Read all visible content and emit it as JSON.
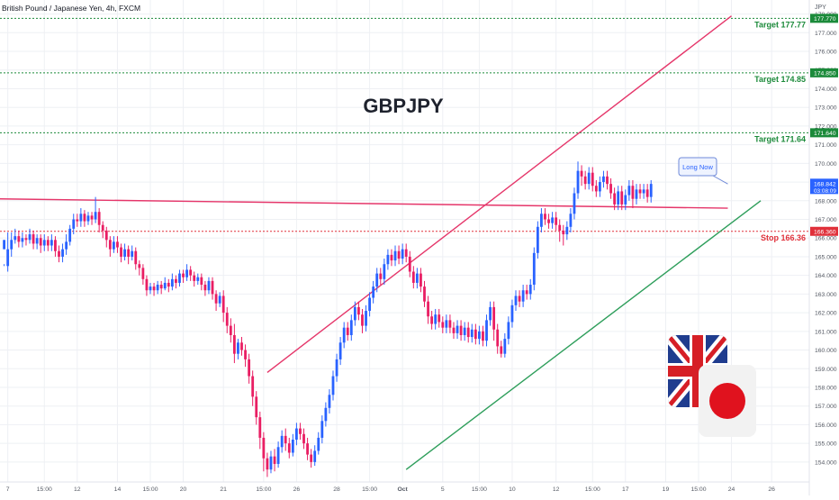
{
  "header": {
    "symbol_title": "British Pound / Japanese Yen, 4h, FXCM",
    "currency_label": "JPY",
    "main_label": "GBPJPY"
  },
  "colors": {
    "bull": "#2962ff",
    "bear": "#e91e63",
    "target_line": "#1b8a3a",
    "stop_line": "#e0303a",
    "trend_red": "#e5366a",
    "trend_green": "#2e9e5b",
    "grid": "#eef0f4",
    "axis_text": "#555a64"
  },
  "annotation": {
    "text": "Long Now"
  },
  "flags": {
    "left": "union-jack-flag-icon",
    "right": "japan-flag-icon"
  },
  "chart_data": {
    "type": "candlestick",
    "title": "British Pound / Japanese Yen, 4h, FXCM",
    "label": "GBPJPY",
    "ylabel": "JPY",
    "ylim": [
      153.4,
      178.4
    ],
    "y_ticks": [
      154.0,
      155.0,
      156.0,
      157.0,
      158.0,
      159.0,
      160.0,
      161.0,
      162.0,
      163.0,
      164.0,
      165.0,
      166.0,
      167.0,
      168.0,
      169.0,
      170.0,
      171.0,
      172.0,
      173.0,
      174.0,
      175.0,
      176.0,
      177.0,
      178.0
    ],
    "x_ticks": [
      {
        "bar": 1,
        "label": "7"
      },
      {
        "bar": 11,
        "label": "15:00"
      },
      {
        "bar": 20,
        "label": "12"
      },
      {
        "bar": 31,
        "label": "14"
      },
      {
        "bar": 40,
        "label": "15:00"
      },
      {
        "bar": 49,
        "label": "20"
      },
      {
        "bar": 60,
        "label": "21"
      },
      {
        "bar": 71,
        "label": "15:00"
      },
      {
        "bar": 80,
        "label": "26"
      },
      {
        "bar": 91,
        "label": "28"
      },
      {
        "bar": 100,
        "label": "15:00"
      },
      {
        "bar": 109,
        "label": "Oct"
      },
      {
        "bar": 120,
        "label": "5"
      },
      {
        "bar": 130,
        "label": "15:00"
      },
      {
        "bar": 139,
        "label": "10"
      },
      {
        "bar": 151,
        "label": "12"
      },
      {
        "bar": 161,
        "label": "15:00"
      },
      {
        "bar": 170,
        "label": "17"
      },
      {
        "bar": 181,
        "label": "19"
      },
      {
        "bar": 190,
        "label": "15:00"
      },
      {
        "bar": 199,
        "label": "24"
      },
      {
        "bar": 210,
        "label": "26"
      }
    ],
    "levels": [
      {
        "name": "Target 177.77",
        "price": 177.77,
        "tag": "177.770",
        "kind": "target"
      },
      {
        "name": "Target 174.85",
        "price": 174.85,
        "tag": "174.850",
        "kind": "target"
      },
      {
        "name": "Target 171.64",
        "price": 171.64,
        "tag": "171.640",
        "kind": "target"
      },
      {
        "name": "Stop 166.36",
        "price": 166.36,
        "tag": "166.360",
        "kind": "stop"
      }
    ],
    "last_price": {
      "value": 168.842,
      "label": "168.842",
      "countdown": "03:08:09"
    },
    "trendlines": [
      {
        "color": "trend_red",
        "from": {
          "bar": -2,
          "price": 168.1
        },
        "to": {
          "bar": 198,
          "price": 167.6
        }
      },
      {
        "color": "trend_red",
        "from": {
          "bar": 72,
          "price": 158.8
        },
        "to": {
          "bar": 199,
          "price": 177.9
        }
      },
      {
        "color": "trend_green",
        "from": {
          "bar": 110,
          "price": 153.6
        },
        "to": {
          "bar": 207,
          "price": 168.0
        }
      }
    ],
    "annotation_anchor": {
      "bar": 198,
      "price": 168.9
    },
    "candles": [
      [
        165.4,
        165.9,
        164.6,
        164.5
      ],
      [
        164.5,
        165.4,
        166.3,
        164.2
      ],
      [
        165.4,
        165.9,
        166.3,
        165.0
      ],
      [
        165.9,
        166.1,
        166.5,
        165.7
      ],
      [
        166.1,
        165.8,
        166.4,
        165.5
      ],
      [
        165.8,
        166.0,
        166.3,
        165.5
      ],
      [
        166.0,
        165.9,
        166.2,
        165.6
      ],
      [
        165.9,
        166.2,
        166.5,
        165.7
      ],
      [
        166.2,
        165.7,
        166.4,
        165.4
      ],
      [
        165.7,
        166.0,
        166.2,
        165.4
      ],
      [
        166.0,
        165.6,
        166.2,
        165.2
      ],
      [
        165.6,
        165.9,
        166.2,
        165.3
      ],
      [
        165.9,
        165.6,
        166.1,
        165.3
      ],
      [
        165.6,
        165.9,
        166.2,
        165.3
      ],
      [
        165.9,
        165.3,
        166.1,
        165.0
      ],
      [
        165.3,
        165.0,
        165.6,
        164.7
      ],
      [
        165.0,
        165.4,
        165.7,
        164.7
      ],
      [
        165.4,
        165.8,
        166.2,
        165.1
      ],
      [
        165.8,
        166.5,
        166.7,
        165.6
      ],
      [
        166.5,
        167.0,
        167.3,
        166.2
      ],
      [
        167.0,
        166.9,
        167.3,
        166.6
      ],
      [
        166.9,
        167.3,
        167.6,
        166.6
      ],
      [
        167.3,
        166.9,
        167.5,
        166.6
      ],
      [
        166.9,
        167.2,
        167.4,
        166.7
      ],
      [
        167.2,
        167.0,
        167.4,
        166.7
      ],
      [
        167.0,
        167.4,
        168.2,
        166.8
      ],
      [
        167.4,
        166.7,
        167.6,
        166.3
      ],
      [
        166.7,
        166.4,
        166.9,
        166.0
      ],
      [
        166.4,
        165.9,
        166.6,
        165.5
      ],
      [
        165.9,
        165.4,
        166.1,
        165.0
      ],
      [
        165.4,
        165.8,
        166.1,
        165.2
      ],
      [
        165.8,
        165.5,
        166.1,
        165.2
      ],
      [
        165.5,
        165.0,
        165.7,
        164.7
      ],
      [
        165.0,
        165.4,
        165.7,
        164.8
      ],
      [
        165.4,
        165.0,
        165.6,
        164.6
      ],
      [
        165.0,
        165.3,
        165.6,
        164.8
      ],
      [
        165.3,
        164.6,
        165.5,
        164.3
      ],
      [
        164.6,
        164.4,
        164.8,
        164.0
      ],
      [
        164.4,
        163.8,
        164.6,
        163.5
      ],
      [
        163.8,
        163.2,
        164.0,
        162.9
      ],
      [
        163.2,
        163.4,
        163.6,
        163.0
      ],
      [
        163.4,
        163.2,
        163.6,
        162.9
      ],
      [
        163.2,
        163.5,
        163.7,
        163.0
      ],
      [
        163.5,
        163.3,
        163.7,
        163.0
      ],
      [
        163.3,
        163.6,
        163.9,
        163.2
      ],
      [
        163.6,
        163.4,
        163.8,
        163.1
      ],
      [
        163.4,
        163.8,
        164.1,
        163.2
      ],
      [
        163.8,
        163.6,
        164.0,
        163.3
      ],
      [
        163.6,
        164.1,
        164.3,
        163.4
      ],
      [
        164.1,
        163.9,
        164.3,
        163.6
      ],
      [
        163.9,
        164.3,
        164.6,
        163.7
      ],
      [
        164.3,
        164.0,
        164.5,
        163.7
      ],
      [
        164.0,
        163.7,
        164.2,
        163.4
      ],
      [
        163.7,
        163.9,
        164.1,
        163.5
      ],
      [
        163.9,
        163.5,
        164.1,
        163.2
      ],
      [
        163.5,
        163.2,
        163.7,
        162.9
      ],
      [
        163.2,
        163.7,
        163.9,
        163.0
      ],
      [
        163.7,
        163.0,
        163.9,
        162.7
      ],
      [
        163.0,
        162.5,
        163.2,
        162.1
      ],
      [
        162.5,
        162.9,
        163.1,
        162.3
      ],
      [
        162.9,
        162.0,
        163.2,
        161.5
      ],
      [
        162.0,
        161.3,
        162.3,
        160.9
      ],
      [
        161.3,
        160.8,
        161.7,
        160.4
      ],
      [
        160.8,
        159.8,
        161.4,
        159.3
      ],
      [
        159.8,
        160.4,
        160.6,
        159.5
      ],
      [
        160.4,
        160.0,
        160.7,
        159.7
      ],
      [
        160.0,
        159.5,
        160.3,
        159.1
      ],
      [
        159.5,
        158.6,
        159.8,
        158.2
      ],
      [
        158.6,
        157.5,
        158.9,
        157.0
      ],
      [
        157.5,
        156.4,
        157.8,
        156.0
      ],
      [
        156.4,
        155.3,
        156.7,
        154.7
      ],
      [
        155.3,
        154.2,
        155.6,
        153.5
      ],
      [
        154.2,
        153.6,
        154.5,
        153.2
      ],
      [
        153.6,
        154.3,
        154.6,
        153.4
      ],
      [
        154.3,
        153.9,
        154.7,
        153.5
      ],
      [
        153.9,
        154.8,
        155.1,
        153.7
      ],
      [
        154.8,
        155.4,
        155.7,
        154.5
      ],
      [
        155.4,
        155.0,
        155.8,
        154.6
      ],
      [
        155.0,
        154.5,
        155.3,
        154.2
      ],
      [
        154.5,
        155.2,
        155.5,
        154.3
      ],
      [
        155.2,
        155.8,
        156.1,
        154.9
      ],
      [
        155.8,
        155.5,
        156.1,
        155.2
      ],
      [
        155.5,
        155.0,
        155.8,
        154.7
      ],
      [
        155.0,
        154.4,
        155.3,
        154.1
      ],
      [
        154.4,
        154.0,
        154.7,
        153.7
      ],
      [
        154.0,
        154.6,
        154.9,
        153.8
      ],
      [
        154.6,
        155.3,
        155.6,
        154.4
      ],
      [
        155.3,
        156.2,
        156.5,
        155.0
      ],
      [
        156.2,
        156.9,
        157.2,
        155.9
      ],
      [
        156.9,
        157.6,
        157.9,
        156.6
      ],
      [
        157.6,
        158.6,
        158.9,
        157.3
      ],
      [
        158.6,
        159.5,
        159.8,
        158.3
      ],
      [
        159.5,
        160.4,
        160.7,
        159.2
      ],
      [
        160.4,
        161.2,
        161.5,
        160.1
      ],
      [
        161.2,
        160.8,
        161.5,
        160.5
      ],
      [
        160.8,
        161.6,
        161.9,
        160.5
      ],
      [
        161.6,
        162.3,
        162.6,
        161.3
      ],
      [
        162.3,
        161.9,
        162.6,
        161.6
      ],
      [
        161.9,
        161.3,
        162.2,
        160.9
      ],
      [
        161.3,
        162.1,
        162.4,
        161.0
      ],
      [
        162.1,
        162.8,
        163.1,
        161.8
      ],
      [
        162.8,
        163.4,
        163.7,
        162.5
      ],
      [
        163.4,
        164.1,
        164.4,
        163.1
      ],
      [
        164.1,
        163.8,
        164.4,
        163.5
      ],
      [
        163.8,
        164.6,
        164.9,
        163.5
      ],
      [
        164.6,
        165.1,
        165.4,
        164.3
      ],
      [
        165.1,
        164.8,
        165.4,
        164.5
      ],
      [
        164.8,
        165.3,
        165.6,
        164.5
      ],
      [
        165.3,
        164.9,
        165.6,
        164.6
      ],
      [
        164.9,
        165.4,
        165.7,
        164.6
      ],
      [
        165.4,
        165.0,
        165.7,
        164.7
      ],
      [
        165.0,
        164.2,
        165.3,
        163.9
      ],
      [
        164.2,
        163.6,
        164.5,
        163.3
      ],
      [
        163.6,
        164.1,
        164.4,
        163.3
      ],
      [
        164.1,
        163.4,
        164.4,
        163.1
      ],
      [
        163.4,
        162.6,
        163.7,
        162.3
      ],
      [
        162.6,
        161.8,
        162.9,
        161.4
      ],
      [
        161.8,
        161.4,
        162.1,
        161.1
      ],
      [
        161.4,
        161.9,
        162.2,
        161.1
      ],
      [
        161.9,
        161.5,
        162.2,
        161.2
      ],
      [
        161.5,
        161.2,
        161.8,
        160.9
      ],
      [
        161.2,
        161.6,
        161.9,
        160.9
      ],
      [
        161.6,
        161.2,
        161.9,
        160.9
      ],
      [
        161.2,
        160.9,
        161.5,
        160.6
      ],
      [
        160.9,
        161.3,
        161.6,
        160.6
      ],
      [
        161.3,
        160.8,
        161.6,
        160.5
      ],
      [
        160.8,
        161.2,
        161.5,
        160.5
      ],
      [
        161.2,
        160.7,
        161.5,
        160.4
      ],
      [
        160.7,
        161.1,
        161.4,
        160.4
      ],
      [
        161.1,
        160.6,
        161.4,
        160.3
      ],
      [
        160.6,
        161.0,
        161.3,
        160.3
      ],
      [
        161.0,
        160.5,
        161.3,
        160.2
      ],
      [
        160.5,
        161.6,
        161.9,
        160.2
      ],
      [
        161.6,
        162.3,
        162.6,
        161.3
      ],
      [
        162.3,
        161.1,
        162.6,
        160.5
      ],
      [
        161.1,
        160.2,
        161.4,
        159.8
      ],
      [
        160.2,
        159.8,
        160.5,
        159.6
      ],
      [
        159.8,
        160.6,
        160.9,
        159.6
      ],
      [
        160.6,
        161.5,
        161.8,
        160.3
      ],
      [
        161.5,
        162.4,
        162.7,
        161.2
      ],
      [
        162.4,
        162.9,
        163.2,
        162.1
      ],
      [
        162.9,
        162.6,
        163.2,
        162.3
      ],
      [
        162.6,
        163.2,
        163.5,
        162.3
      ],
      [
        163.2,
        163.0,
        163.5,
        162.7
      ],
      [
        163.0,
        163.5,
        163.8,
        162.7
      ],
      [
        163.5,
        165.2,
        165.5,
        163.2
      ],
      [
        165.2,
        166.6,
        166.9,
        164.9
      ],
      [
        166.6,
        167.3,
        167.6,
        166.3
      ],
      [
        167.3,
        167.0,
        167.6,
        166.7
      ],
      [
        167.0,
        166.8,
        167.3,
        166.5
      ],
      [
        166.8,
        167.1,
        167.4,
        166.5
      ],
      [
        167.1,
        166.7,
        167.4,
        166.4
      ],
      [
        166.7,
        166.4,
        167.0,
        165.8
      ],
      [
        166.4,
        166.2,
        166.7,
        165.6
      ],
      [
        166.2,
        166.6,
        166.9,
        165.9
      ],
      [
        166.6,
        167.3,
        167.6,
        166.3
      ],
      [
        167.3,
        168.4,
        168.7,
        167.0
      ],
      [
        168.4,
        169.6,
        170.1,
        168.1
      ],
      [
        169.6,
        169.3,
        169.9,
        168.8
      ],
      [
        169.3,
        168.9,
        169.6,
        168.6
      ],
      [
        168.9,
        169.5,
        169.8,
        168.6
      ],
      [
        169.5,
        168.8,
        169.8,
        168.5
      ],
      [
        168.8,
        168.5,
        169.1,
        168.2
      ],
      [
        168.5,
        169.0,
        169.3,
        168.2
      ],
      [
        169.0,
        169.3,
        169.6,
        168.7
      ],
      [
        169.3,
        168.9,
        169.6,
        168.6
      ],
      [
        168.9,
        168.4,
        169.2,
        168.1
      ],
      [
        168.4,
        167.8,
        168.7,
        167.5
      ],
      [
        167.8,
        168.5,
        168.8,
        167.5
      ],
      [
        168.5,
        167.8,
        168.8,
        167.5
      ],
      [
        167.8,
        168.3,
        168.6,
        167.5
      ],
      [
        168.3,
        168.8,
        169.1,
        168.0
      ],
      [
        168.8,
        168.1,
        169.1,
        167.6
      ],
      [
        168.1,
        168.6,
        168.9,
        167.8
      ],
      [
        168.6,
        168.4,
        168.9,
        168.1
      ],
      [
        168.4,
        168.6,
        168.9,
        168.1
      ],
      [
        168.6,
        168.2,
        168.9,
        167.9
      ],
      [
        168.2,
        168.9,
        169.1,
        167.9
      ]
    ]
  }
}
